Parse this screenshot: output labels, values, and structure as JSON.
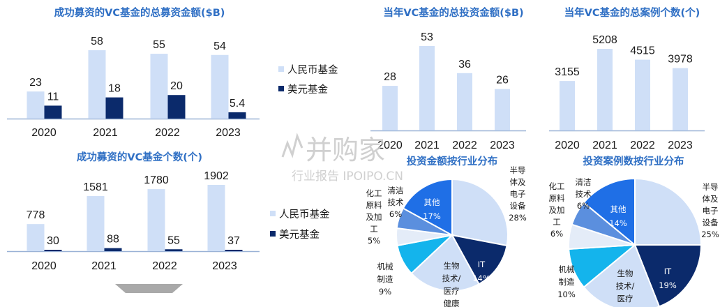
{
  "colors": {
    "rmb": "#cfdff7",
    "usd": "#0b2a6b",
    "axis": "#9ab2d6",
    "pie_light": "#cfdff7",
    "pie_light2": "#e4ecf8",
    "pie_dark": "#0b2a6b",
    "pie_cyan": "#14b4ec",
    "pie_mid": "#5b8fde",
    "pie_blue": "#1f6fe6",
    "title": "#2f6fc4"
  },
  "legend": {
    "rmb": "人民币基金",
    "usd": "美元基金"
  },
  "watermark": {
    "line1": "并购家",
    "line2": "行业报告 IPOIPO.CN"
  },
  "chart_data": [
    {
      "type": "bar",
      "title": "成功募资的VC基金的总募资金额($B)",
      "categories": [
        "2020",
        "2021",
        "2022",
        "2023"
      ],
      "series": [
        {
          "name": "人民币基金",
          "values": [
            23,
            58,
            55,
            54
          ],
          "labels": [
            "23",
            "58",
            "55",
            "54"
          ]
        },
        {
          "name": "美元基金",
          "values": [
            11,
            18,
            20,
            5.4
          ],
          "labels": [
            "11",
            "18",
            "20",
            "5.4"
          ]
        }
      ]
    },
    {
      "type": "bar",
      "title": "成功募资的VC基金个数(个)",
      "categories": [
        "2020",
        "2021",
        "2022",
        "2023"
      ],
      "series": [
        {
          "name": "人民币基金",
          "values": [
            778,
            1581,
            1780,
            1902
          ],
          "labels": [
            "778",
            "1581",
            "1780",
            "1902"
          ]
        },
        {
          "name": "美元基金",
          "values": [
            30,
            88,
            55,
            37
          ],
          "labels": [
            "30",
            "88",
            "55",
            "37"
          ]
        }
      ]
    },
    {
      "type": "bar",
      "title": "当年VC基金的总投资金额($B)",
      "categories": [
        "2020",
        "2021",
        "2022",
        "2023"
      ],
      "series": [
        {
          "values": [
            28,
            53,
            36,
            26
          ],
          "labels": [
            "28",
            "53",
            "36",
            "26"
          ]
        }
      ]
    },
    {
      "type": "bar",
      "title": "当年VC基金的总案例个数(个)",
      "categories": [
        "2020",
        "2021",
        "2022",
        "2023"
      ],
      "series": [
        {
          "values": [
            3155,
            5208,
            4515,
            3978
          ],
          "labels": [
            "3155",
            "5208",
            "4515",
            "3978"
          ]
        }
      ]
    },
    {
      "type": "pie",
      "title": "投资金额按行业分布",
      "slices": [
        {
          "label": "半导体及电子设备",
          "value": 28,
          "text": "28%"
        },
        {
          "label": "IT",
          "value": 14,
          "text": "14%"
        },
        {
          "label": "生物技术/医疗健康",
          "value": 21,
          "text": ""
        },
        {
          "label": "机械制造",
          "value": 9,
          "text": "9%"
        },
        {
          "label": "化工原料及加工",
          "value": 5,
          "text": "5%"
        },
        {
          "label": "清洁技术",
          "value": 6,
          "text": "6%"
        },
        {
          "label": "其他",
          "value": 17,
          "text": "17%"
        }
      ]
    },
    {
      "type": "pie",
      "title": "投资案例数按行业分布",
      "slices": [
        {
          "label": "半导体及电子设备",
          "value": 25,
          "text": "25%"
        },
        {
          "label": "IT",
          "value": 19,
          "text": "19%"
        },
        {
          "label": "生物技术/医疗",
          "value": 20,
          "text": ""
        },
        {
          "label": "机械制造",
          "value": 10,
          "text": "10%"
        },
        {
          "label": "化工原料及加工",
          "value": 6,
          "text": "6%"
        },
        {
          "label": "清洁技术",
          "value": 6,
          "text": "6%"
        },
        {
          "label": "其他",
          "value": 14,
          "text": "14%"
        }
      ]
    }
  ]
}
